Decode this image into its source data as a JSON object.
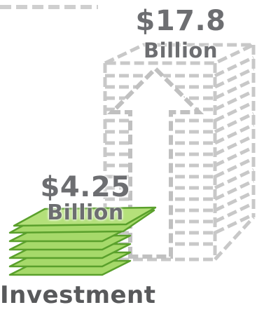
{
  "figure": {
    "large_amount": "$17.8",
    "large_unit": "Billion",
    "small_amount": "$4.25",
    "small_unit": "Billion",
    "caption": "Investment",
    "colors": {
      "outline_gray": "#c8c8c8",
      "text_gray": "#6d6e71",
      "money_fill": "#a6d96a",
      "money_edge": "#5aa02c"
    },
    "icons": [
      "dashed-arrow-up-icon",
      "dashed-money-stack-icon",
      "money-stack-icon"
    ]
  }
}
